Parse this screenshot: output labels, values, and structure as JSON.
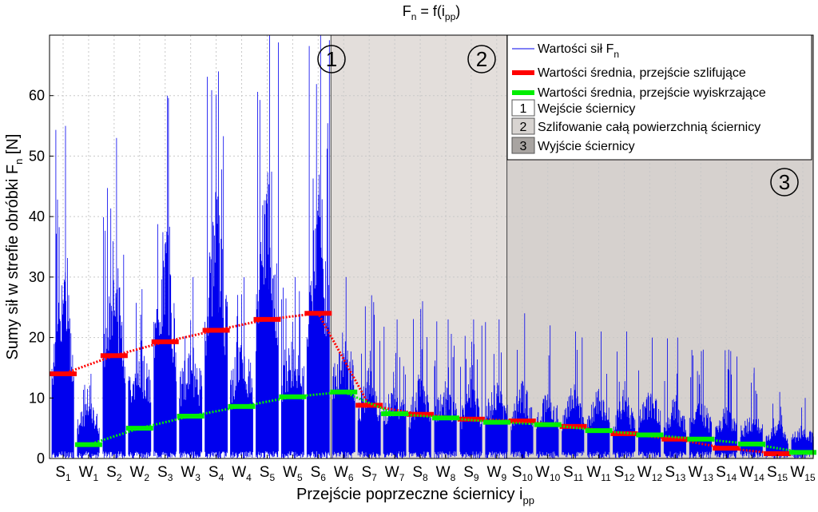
{
  "chart_data": {
    "type": "line",
    "title_base": "F",
    "title_sub": "n",
    "title_rest": " = f(i",
    "title_sub2": "pp",
    "title_end": ")",
    "ylabel_base": "Sumy sił w strefie obróbki F",
    "ylabel_sub": "n",
    "ylabel_end": " [N]",
    "xlabel_base": "Przejście poprzeczne ściernicy i",
    "xlabel_sub": "pp",
    "ylim": [
      0,
      70
    ],
    "yticks": [
      0,
      10,
      20,
      30,
      40,
      50,
      60
    ],
    "grid": true,
    "legend_position": "top-right",
    "xtick_labels": [
      {
        "base": "S",
        "sub": "1"
      },
      {
        "base": "W",
        "sub": "1"
      },
      {
        "base": "S",
        "sub": "2"
      },
      {
        "base": "W",
        "sub": "2"
      },
      {
        "base": "S",
        "sub": "3"
      },
      {
        "base": "W",
        "sub": "3"
      },
      {
        "base": "S",
        "sub": "4"
      },
      {
        "base": "W",
        "sub": "4"
      },
      {
        "base": "S",
        "sub": "5"
      },
      {
        "base": "W",
        "sub": "5"
      },
      {
        "base": "S",
        "sub": "6"
      },
      {
        "base": "W",
        "sub": "6"
      },
      {
        "base": "S",
        "sub": "7"
      },
      {
        "base": "W",
        "sub": "7"
      },
      {
        "base": "S",
        "sub": "8"
      },
      {
        "base": "W",
        "sub": "8"
      },
      {
        "base": "S",
        "sub": "9"
      },
      {
        "base": "W",
        "sub": "9"
      },
      {
        "base": "S",
        "sub": "10"
      },
      {
        "base": "W",
        "sub": "10"
      },
      {
        "base": "S",
        "sub": "11"
      },
      {
        "base": "W",
        "sub": "11"
      },
      {
        "base": "S",
        "sub": "12"
      },
      {
        "base": "W",
        "sub": "12"
      },
      {
        "base": "S",
        "sub": "13"
      },
      {
        "base": "W",
        "sub": "13"
      },
      {
        "base": "S",
        "sub": "14"
      },
      {
        "base": "W",
        "sub": "14"
      },
      {
        "base": "S",
        "sub": "15"
      },
      {
        "base": "W",
        "sub": "15"
      }
    ],
    "zones": [
      {
        "label": "1",
        "from_pass": 1,
        "to_pass": 11.5,
        "color": "#ffffff"
      },
      {
        "label": "2",
        "from_pass": 11.5,
        "to_pass": 18.4,
        "color": "#e3dedb"
      },
      {
        "label": "3",
        "from_pass": 18.4,
        "to_pass": 30,
        "color": "#d6d1ce"
      }
    ],
    "series": [
      {
        "name_base": "Wartości sił F",
        "name_sub": "n",
        "color": "#0000ee",
        "kind": "signal",
        "peak_max": [
          55,
          14,
          53,
          28,
          60,
          30,
          64,
          30,
          70,
          30,
          70,
          30,
          27,
          23,
          26,
          23,
          23,
          23,
          24,
          22,
          21,
          21,
          21,
          20,
          20,
          18,
          18,
          15,
          11,
          10
        ],
        "typical_high": [
          35,
          10,
          38,
          20,
          42,
          20,
          48,
          21,
          53,
          22,
          51,
          22,
          16,
          13,
          15,
          13,
          14,
          13,
          14,
          12,
          13,
          12,
          12,
          12,
          11,
          10,
          10,
          8,
          7,
          6
        ]
      },
      {
        "name": "Wartości średnia, przejście szlifujące",
        "color": "#ff0000",
        "kind": "mean",
        "values": [
          14,
          null,
          17,
          null,
          19.3,
          null,
          21.2,
          null,
          23,
          null,
          24,
          null,
          8.8,
          null,
          7.3,
          null,
          6.5,
          null,
          6.2,
          null,
          5.3,
          null,
          4.1,
          null,
          3.2,
          null,
          1.7,
          null,
          0.8,
          null
        ]
      },
      {
        "name": "Wartości średnia, przejście wyiskrzające",
        "color": "#00ee00",
        "kind": "mean",
        "values": [
          null,
          2.3,
          null,
          5,
          null,
          7,
          null,
          8.6,
          null,
          10.2,
          null,
          11,
          null,
          7.4,
          null,
          6.7,
          null,
          6,
          null,
          5.6,
          null,
          4.6,
          null,
          3.9,
          null,
          3.2,
          null,
          2.4,
          null,
          1
        ]
      }
    ],
    "legend_zone_entries": [
      "Wejście ściernicy",
      "Szlifowanie całą powierzchnią ściernicy",
      "Wyjście ściernicy"
    ]
  }
}
